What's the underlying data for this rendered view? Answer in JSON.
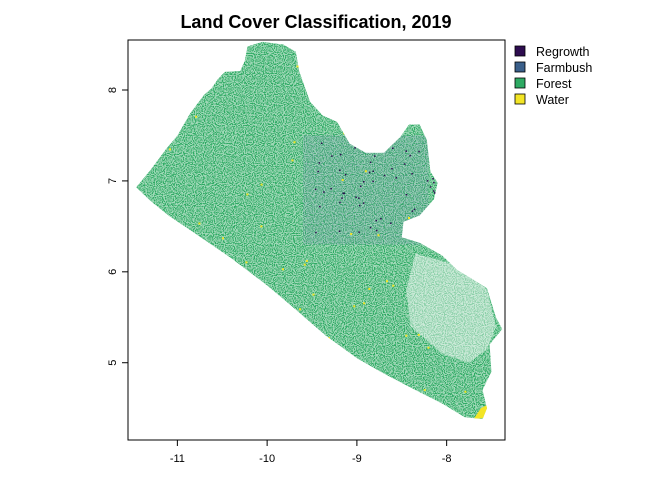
{
  "chart_data": {
    "type": "raster-map",
    "title": "Land Cover Classification, 2019",
    "xlabel": "",
    "ylabel": "",
    "xlim": [
      -11.55,
      -7.35
    ],
    "ylim": [
      4.15,
      8.55
    ],
    "x_ticks": [
      -11,
      -10,
      -9,
      -8
    ],
    "x_tick_labels": [
      "-11",
      "-10",
      "-9",
      "-8"
    ],
    "y_ticks": [
      5,
      6,
      7,
      8
    ],
    "y_tick_labels": [
      "5",
      "6",
      "7",
      "8"
    ],
    "legend_position": "top-right",
    "classes": [
      {
        "name": "Regrowth",
        "color": "#2d0c4f"
      },
      {
        "name": "Farmbush",
        "color": "#3a5f8a"
      },
      {
        "name": "Forest",
        "color": "#2eaa63"
      },
      {
        "name": "Water",
        "color": "#f3e526"
      }
    ],
    "dominant_class": "Forest",
    "outline_lonlat": [
      [
        -11.46,
        6.93
      ],
      [
        -11.3,
        7.12
      ],
      [
        -11.12,
        7.36
      ],
      [
        -11.0,
        7.5
      ],
      [
        -10.86,
        7.74
      ],
      [
        -10.7,
        7.95
      ],
      [
        -10.62,
        8.02
      ],
      [
        -10.55,
        8.12
      ],
      [
        -10.47,
        8.2
      ],
      [
        -10.3,
        8.21
      ],
      [
        -10.25,
        8.32
      ],
      [
        -10.22,
        8.48
      ],
      [
        -10.05,
        8.53
      ],
      [
        -9.82,
        8.5
      ],
      [
        -9.68,
        8.42
      ],
      [
        -9.64,
        8.2
      ],
      [
        -9.52,
        7.87
      ],
      [
        -9.38,
        7.72
      ],
      [
        -9.22,
        7.65
      ],
      [
        -9.08,
        7.41
      ],
      [
        -8.9,
        7.31
      ],
      [
        -8.7,
        7.31
      ],
      [
        -8.52,
        7.48
      ],
      [
        -8.42,
        7.62
      ],
      [
        -8.3,
        7.62
      ],
      [
        -8.22,
        7.45
      ],
      [
        -8.18,
        7.1
      ],
      [
        -8.1,
        6.98
      ],
      [
        -8.14,
        6.8
      ],
      [
        -8.3,
        6.62
      ],
      [
        -8.48,
        6.55
      ],
      [
        -8.5,
        6.38
      ],
      [
        -8.3,
        6.32
      ],
      [
        -8.05,
        6.18
      ],
      [
        -7.88,
        6.02
      ],
      [
        -7.68,
        5.9
      ],
      [
        -7.55,
        5.82
      ],
      [
        -7.45,
        5.5
      ],
      [
        -7.38,
        5.37
      ],
      [
        -7.52,
        5.2
      ],
      [
        -7.5,
        4.9
      ],
      [
        -7.6,
        4.7
      ],
      [
        -7.55,
        4.5
      ],
      [
        -7.6,
        4.38
      ],
      [
        -7.8,
        4.4
      ],
      [
        -8.05,
        4.55
      ],
      [
        -8.35,
        4.7
      ],
      [
        -8.7,
        4.88
      ],
      [
        -9.0,
        5.05
      ],
      [
        -9.35,
        5.3
      ],
      [
        -9.7,
        5.6
      ],
      [
        -10.0,
        5.85
      ],
      [
        -10.4,
        6.15
      ],
      [
        -10.8,
        6.42
      ],
      [
        -11.1,
        6.62
      ],
      [
        -11.3,
        6.78
      ],
      [
        -11.46,
        6.93
      ]
    ],
    "water_areas_lonlat": [
      [
        [
          -10.95,
          6.43
        ],
        [
          -10.65,
          6.2
        ],
        [
          -10.55,
          6.15
        ],
        [
          -10.58,
          6.26
        ],
        [
          -10.8,
          6.4
        ]
      ],
      [
        [
          -7.7,
          4.38
        ],
        [
          -7.52,
          4.4
        ],
        [
          -7.52,
          4.55
        ],
        [
          -7.62,
          4.5
        ]
      ]
    ],
    "sparse_region_lonlat": [
      [
        -8.35,
        6.2
      ],
      [
        -7.8,
        6.05
      ],
      [
        -7.55,
        5.8
      ],
      [
        -7.45,
        5.4
      ],
      [
        -7.55,
        5.15
      ],
      [
        -7.75,
        5.0
      ],
      [
        -8.05,
        5.1
      ],
      [
        -8.4,
        5.4
      ],
      [
        -8.45,
        5.8
      ]
    ]
  }
}
